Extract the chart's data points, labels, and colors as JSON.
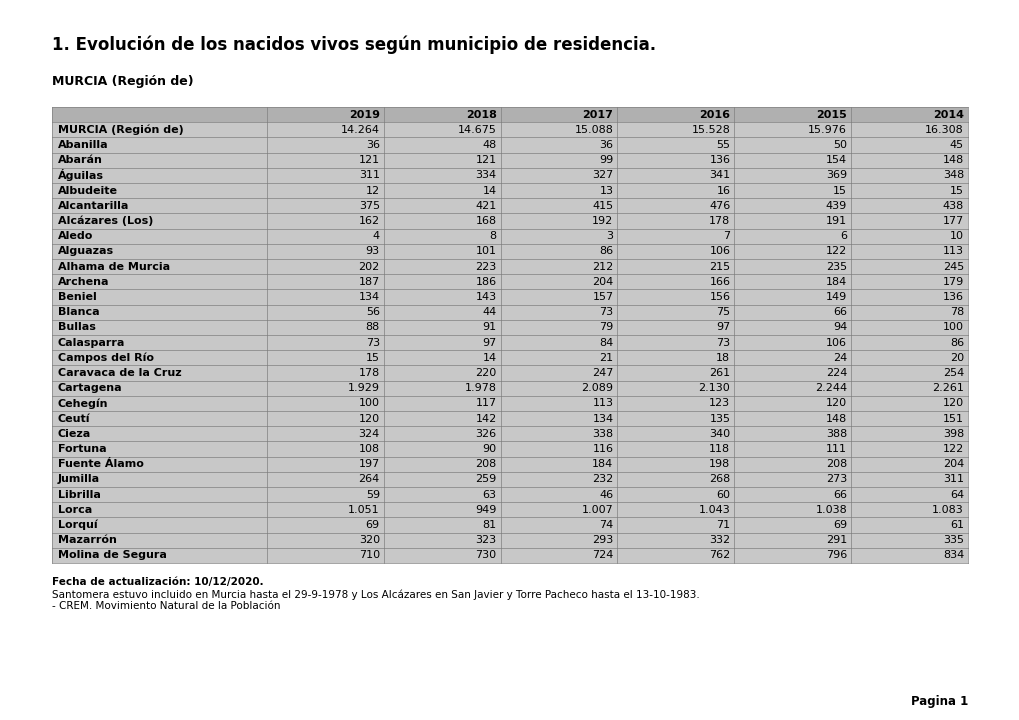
{
  "title": "1. Evolución de los nacidos vivos según municipio de residencia.",
  "subtitle": "MURCIA (Región de)",
  "columns": [
    "2019",
    "2018",
    "2017",
    "2016",
    "2015",
    "2014"
  ],
  "rows": [
    [
      "MURCIA (Región de)",
      "14.264",
      "14.675",
      "15.088",
      "15.528",
      "15.976",
      "16.308"
    ],
    [
      "Abanilla",
      "36",
      "48",
      "36",
      "55",
      "50",
      "45"
    ],
    [
      "Abarán",
      "121",
      "121",
      "99",
      "136",
      "154",
      "148"
    ],
    [
      "Águilas",
      "311",
      "334",
      "327",
      "341",
      "369",
      "348"
    ],
    [
      "Albudeite",
      "12",
      "14",
      "13",
      "16",
      "15",
      "15"
    ],
    [
      "Alcantarilla",
      "375",
      "421",
      "415",
      "476",
      "439",
      "438"
    ],
    [
      "Alcázares (Los)",
      "162",
      "168",
      "192",
      "178",
      "191",
      "177"
    ],
    [
      "Aledo",
      "4",
      "8",
      "3",
      "7",
      "6",
      "10"
    ],
    [
      "Alguazas",
      "93",
      "101",
      "86",
      "106",
      "122",
      "113"
    ],
    [
      "Alhama de Murcia",
      "202",
      "223",
      "212",
      "215",
      "235",
      "245"
    ],
    [
      "Archena",
      "187",
      "186",
      "204",
      "166",
      "184",
      "179"
    ],
    [
      "Beniel",
      "134",
      "143",
      "157",
      "156",
      "149",
      "136"
    ],
    [
      "Blanca",
      "56",
      "44",
      "73",
      "75",
      "66",
      "78"
    ],
    [
      "Bullas",
      "88",
      "91",
      "79",
      "97",
      "94",
      "100"
    ],
    [
      "Calasparra",
      "73",
      "97",
      "84",
      "73",
      "106",
      "86"
    ],
    [
      "Campos del Río",
      "15",
      "14",
      "21",
      "18",
      "24",
      "20"
    ],
    [
      "Caravaca de la Cruz",
      "178",
      "220",
      "247",
      "261",
      "224",
      "254"
    ],
    [
      "Cartagena",
      "1.929",
      "1.978",
      "2.089",
      "2.130",
      "2.244",
      "2.261"
    ],
    [
      "Cehegín",
      "100",
      "117",
      "113",
      "123",
      "120",
      "120"
    ],
    [
      "Ceutí",
      "120",
      "142",
      "134",
      "135",
      "148",
      "151"
    ],
    [
      "Cieza",
      "324",
      "326",
      "338",
      "340",
      "388",
      "398"
    ],
    [
      "Fortuna",
      "108",
      "90",
      "116",
      "118",
      "111",
      "122"
    ],
    [
      "Fuente Álamo",
      "197",
      "208",
      "184",
      "198",
      "208",
      "204"
    ],
    [
      "Jumilla",
      "264",
      "259",
      "232",
      "268",
      "273",
      "311"
    ],
    [
      "Librilla",
      "59",
      "63",
      "46",
      "60",
      "66",
      "64"
    ],
    [
      "Lorca",
      "1.051",
      "949",
      "1.007",
      "1.043",
      "1.038",
      "1.083"
    ],
    [
      "Lorquí",
      "69",
      "81",
      "74",
      "71",
      "69",
      "61"
    ],
    [
      "Mazarrón",
      "320",
      "323",
      "293",
      "332",
      "291",
      "335"
    ],
    [
      "Molina de Segura",
      "710",
      "730",
      "724",
      "762",
      "796",
      "834"
    ]
  ],
  "footer_lines": [
    "Fecha de actualización: 10/12/2020.",
    "Santomera estuvo incluido en Murcia hasta el 29-9-1978 y Los Alcázares en San Javier y Torre Pacheco hasta el 13-10-1983.",
    "- CREM. Movimiento Natural de la Población"
  ],
  "page_label": "Pagina 1",
  "bg_color": "#ffffff",
  "header_bg": "#b0b0b0",
  "row_bg": "#c8c8c8",
  "border_color": "#808080",
  "text_color": "#000000",
  "title_fontsize": 12,
  "subtitle_fontsize": 9,
  "table_fontsize": 8,
  "footer_fontsize": 7.5
}
